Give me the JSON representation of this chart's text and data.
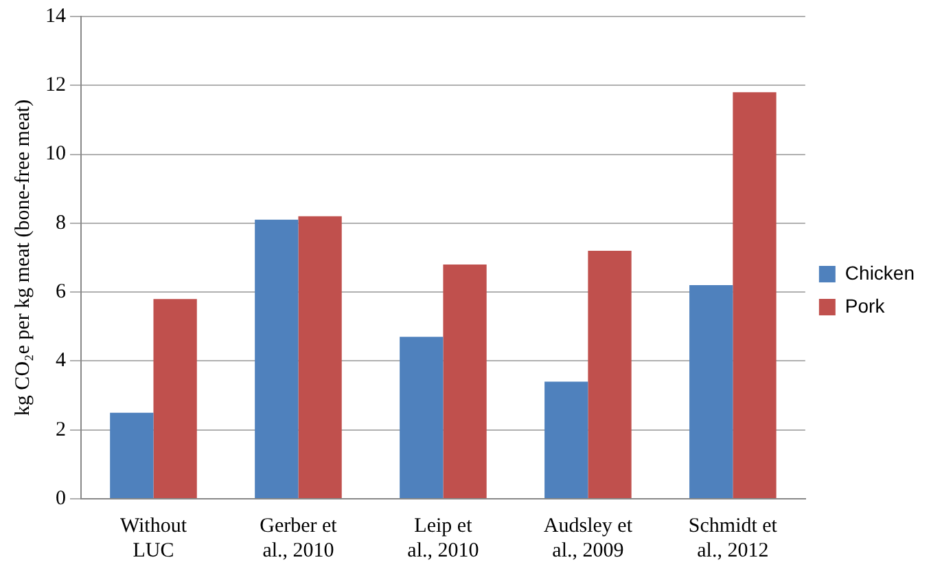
{
  "chart_data": {
    "type": "bar",
    "ylabel": "kg CO₂e per kg meat (bone-free meat)",
    "categories": [
      "Without LUC",
      "Gerber et al., 2010",
      "Leip et al., 2010",
      "Audsley et al., 2009",
      "Schmidt et al., 2012"
    ],
    "series": [
      {
        "name": "Chicken",
        "color": "#4f81bd",
        "values": [
          2.5,
          8.1,
          4.7,
          3.4,
          6.2
        ]
      },
      {
        "name": "Pork",
        "color": "#c0504d",
        "values": [
          5.8,
          8.2,
          6.8,
          7.2,
          11.8
        ]
      }
    ],
    "ylim": [
      0,
      14
    ],
    "yticks": [
      0,
      2,
      4,
      6,
      8,
      10,
      12,
      14
    ],
    "grid": "y",
    "legend": "right"
  }
}
